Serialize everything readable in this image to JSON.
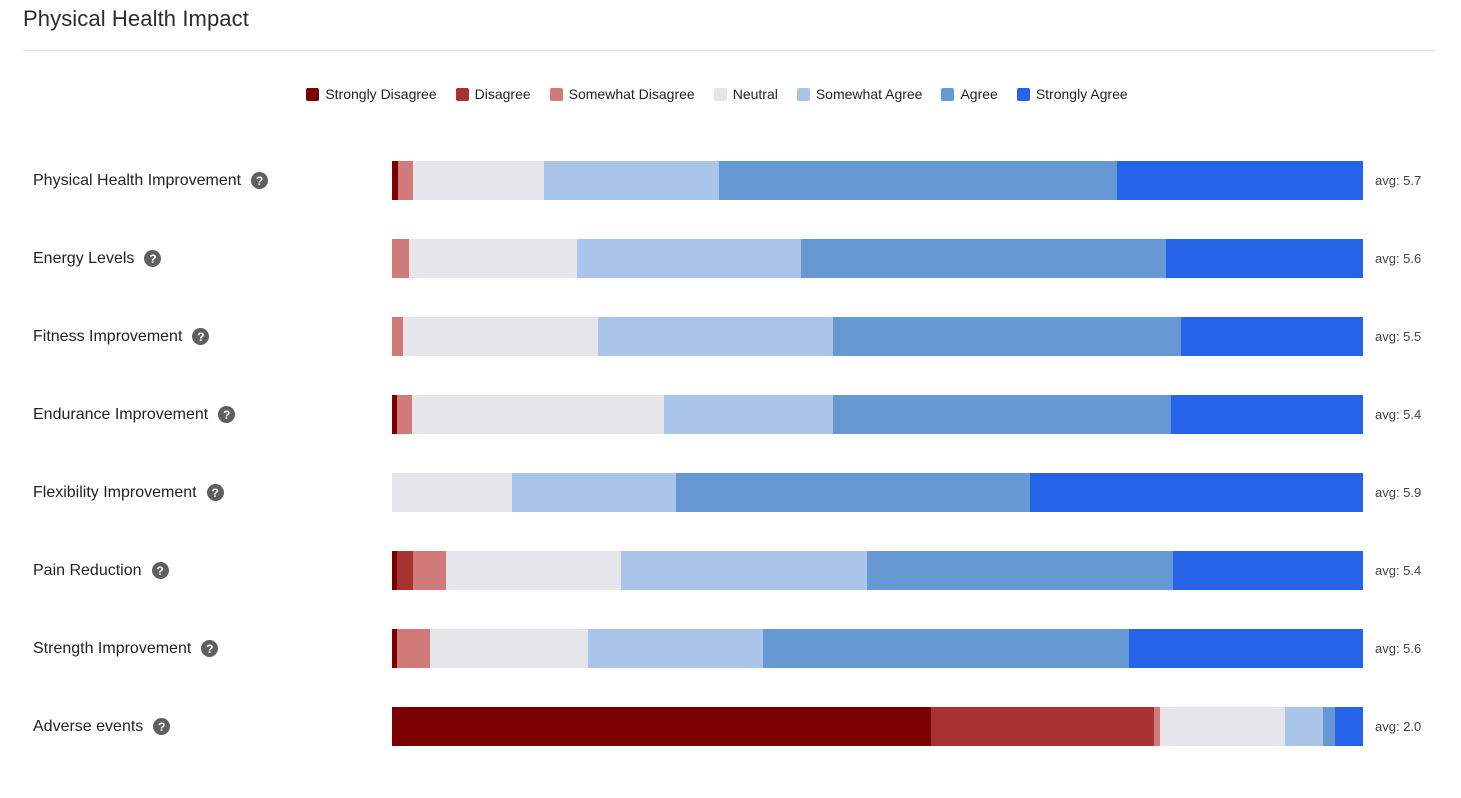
{
  "page": {
    "title": "Physical Health Impact"
  },
  "chart_data": {
    "type": "bar",
    "orientation": "horizontal-stacked-100",
    "title": "Physical Health Impact",
    "legend_position": "top-center",
    "series": [
      {
        "name": "Strongly Disagree",
        "color": "#7a0000"
      },
      {
        "name": "Disagree",
        "color": "#a83232"
      },
      {
        "name": "Somewhat Disagree",
        "color": "#d07a7a"
      },
      {
        "name": "Neutral",
        "color": "#e6e6ea"
      },
      {
        "name": "Somewhat Agree",
        "color": "#a9c6ea"
      },
      {
        "name": "Agree",
        "color": "#6699d4"
      },
      {
        "name": "Strongly Agree",
        "color": "#2563e8"
      }
    ],
    "categories": [
      {
        "label": "Physical Health Improvement",
        "avg": "avg: 5.7",
        "values": [
          0.6,
          0.0,
          1.6,
          13.5,
          18.0,
          41.0,
          25.3
        ]
      },
      {
        "label": "Energy Levels",
        "avg": "avg: 5.6",
        "values": [
          0.0,
          0.0,
          1.7,
          17.4,
          23.0,
          37.6,
          20.3
        ]
      },
      {
        "label": "Fitness Improvement",
        "avg": "avg: 5.5",
        "values": [
          0.0,
          0.0,
          1.1,
          20.1,
          24.2,
          35.9,
          18.7
        ]
      },
      {
        "label": "Endurance Improvement",
        "avg": "avg: 5.4",
        "values": [
          0.5,
          0.0,
          1.6,
          25.9,
          17.4,
          34.8,
          19.8
        ]
      },
      {
        "label": "Flexibility Improvement",
        "avg": "avg: 5.9",
        "values": [
          0.0,
          0.0,
          0.0,
          12.4,
          16.8,
          36.5,
          34.3
        ]
      },
      {
        "label": "Pain Reduction",
        "avg": "avg: 5.4",
        "values": [
          0.5,
          1.7,
          3.4,
          18.0,
          25.3,
          31.5,
          19.6
        ]
      },
      {
        "label": "Strength Improvement",
        "avg": "avg: 5.6",
        "values": [
          0.5,
          0.0,
          3.4,
          16.3,
          18.0,
          37.7,
          24.1
        ]
      },
      {
        "label": "Adverse events",
        "avg": "avg: 2.0",
        "values": [
          55.5,
          23.0,
          0.6,
          12.9,
          3.9,
          1.2,
          2.9
        ]
      }
    ]
  },
  "icons": {
    "help": "question-circle-icon",
    "help_glyph": "?"
  }
}
